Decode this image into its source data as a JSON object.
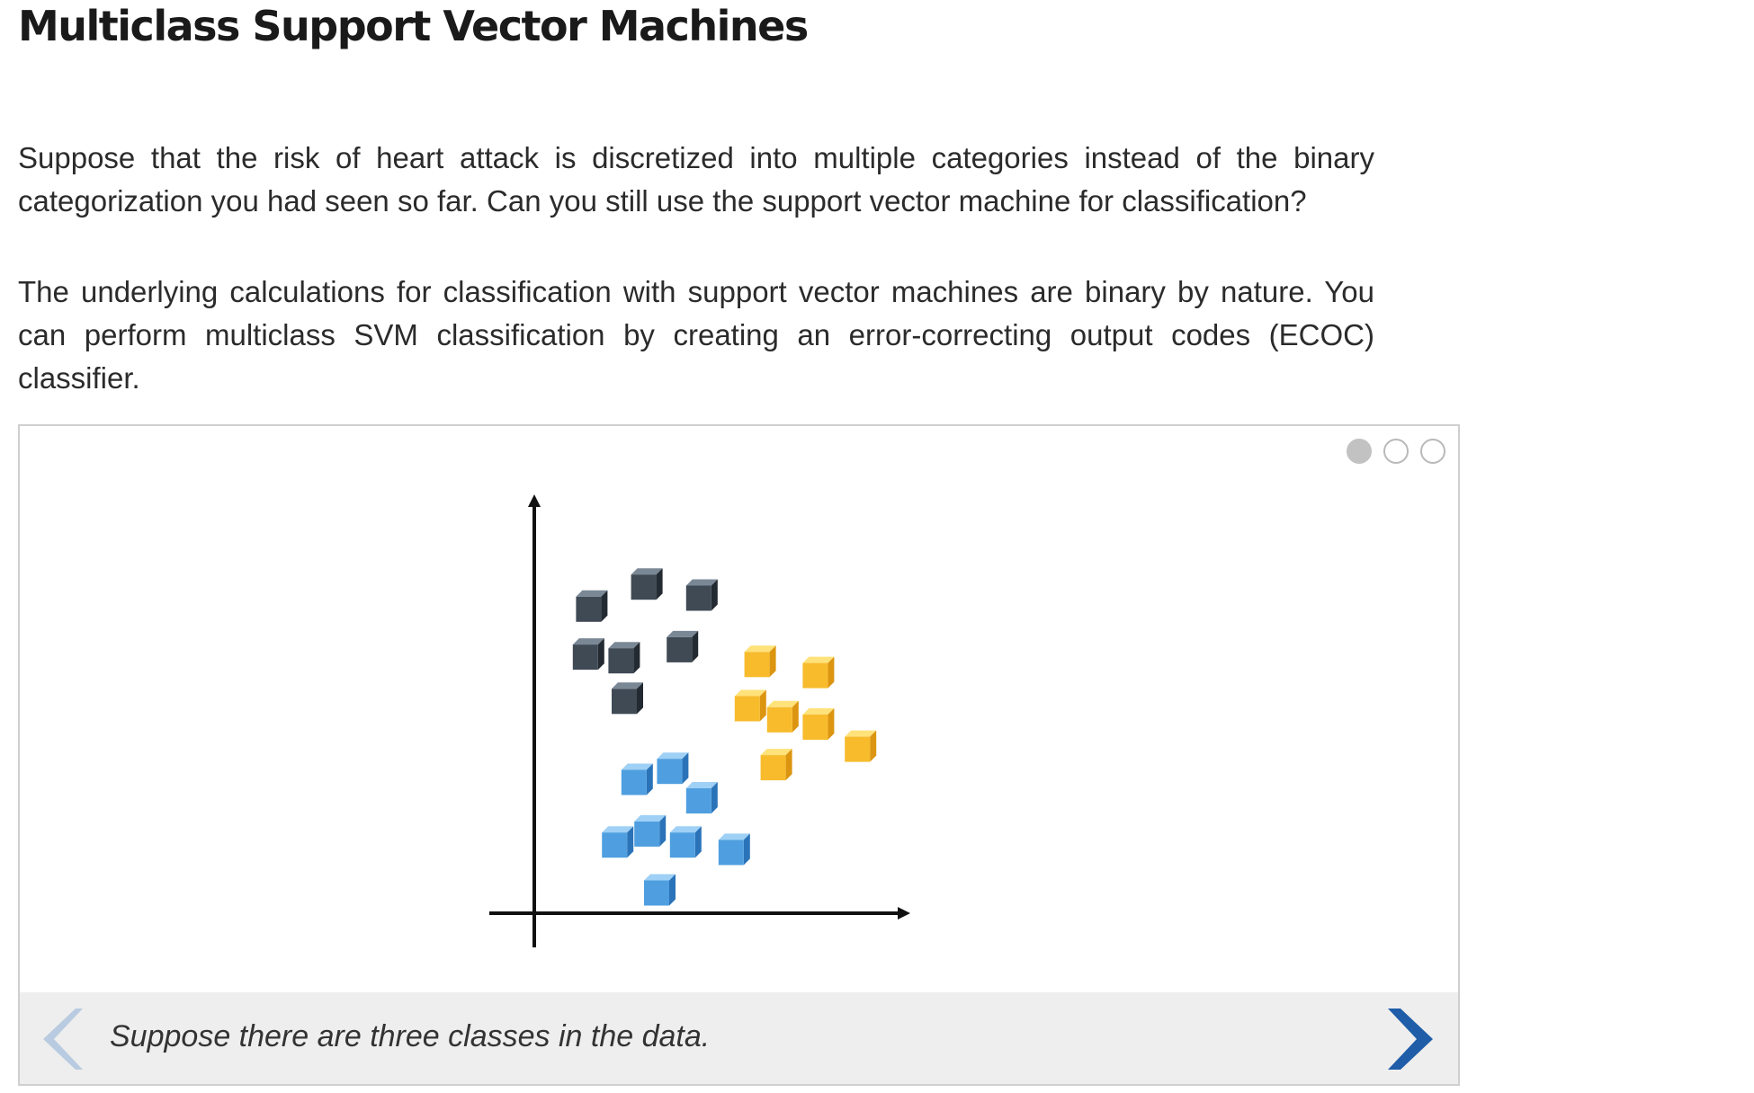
{
  "title": "Multiclass Support Vector Machines",
  "paragraphs": [
    "Suppose that the risk of heart attack is discretized into multiple categories instead of the binary categorization you had seen so far. Can you still use the support vector machine for classification?",
    "The underlying calculations for classification with support vector machines are binary by nature. You can perform multiclass SVM classification by creating an error-correcting output codes (ECOC) classifier."
  ],
  "slideshow": {
    "caption": "Suppose there are three classes in the data.",
    "current_slide": 1,
    "slides_total": 3,
    "prev_icon": "chevron-left-icon",
    "next_icon": "chevron-right-icon"
  },
  "colors": {
    "dark": [
      "#7a8896",
      "#3f4a55",
      "#232a31"
    ],
    "yellow": [
      "#ffe27a",
      "#f7bb2c",
      "#dc9510"
    ],
    "blue": [
      "#9fd0f5",
      "#4f9fe0",
      "#2b73b8"
    ],
    "nav_prev": "#b9cbe0",
    "nav_next": "#1f5da8"
  },
  "chart_data": {
    "type": "scatter",
    "title": "",
    "xlabel": "",
    "ylabel": "",
    "xlim": [
      0,
      10
    ],
    "ylim": [
      0,
      10
    ],
    "grid": false,
    "series": [
      {
        "color": "dark",
        "x": [
          0.9,
          2.6,
          4.3,
          0.8,
          1.9,
          3.7,
          2.0
        ],
        "y": [
          8.2,
          8.8,
          8.5,
          6.9,
          6.8,
          7.1,
          5.7
        ]
      },
      {
        "color": "yellow",
        "x": [
          6.1,
          7.9,
          5.8,
          6.8,
          7.9,
          9.2,
          6.6
        ],
        "y": [
          6.7,
          6.4,
          5.5,
          5.2,
          5.0,
          4.4,
          3.9
        ]
      },
      {
        "color": "blue",
        "x": [
          2.3,
          3.4,
          4.3,
          1.7,
          2.7,
          3.8,
          5.3,
          3.0
        ],
        "y": [
          3.5,
          3.8,
          3.0,
          1.8,
          2.1,
          1.8,
          1.6,
          0.5
        ]
      }
    ]
  }
}
